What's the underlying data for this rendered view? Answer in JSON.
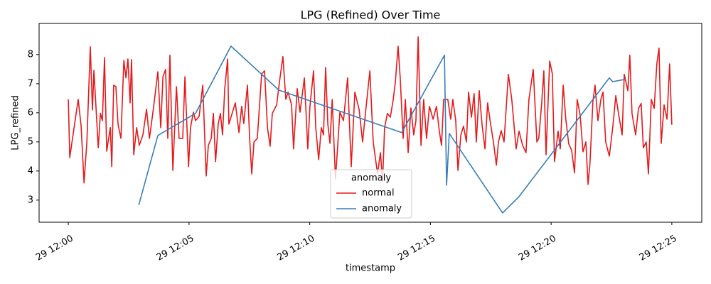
{
  "chart_data": {
    "type": "line",
    "title": "LPG (Refined) Over Time",
    "xlabel": "timestamp",
    "ylabel": "LPG_refined",
    "legend_title": "anomaly",
    "legend": "lower center",
    "grid": false,
    "xlim": [
      -1.21,
      26.24
    ],
    "ylim": [
      2.24,
      9.07
    ],
    "xticks": [
      {
        "value": 0,
        "label": "29 12:00"
      },
      {
        "value": 5,
        "label": "29 12:05"
      },
      {
        "value": 10,
        "label": "29 12:10"
      },
      {
        "value": 15,
        "label": "29 12:15"
      },
      {
        "value": 20,
        "label": "29 12:20"
      },
      {
        "value": 25,
        "label": "29 12:25"
      }
    ],
    "yticks": [
      3,
      4,
      5,
      6,
      7,
      8
    ],
    "series": [
      {
        "name": "normal",
        "color": "#e41a1c",
        "x": [
          0,
          0.06,
          0.24,
          0.41,
          0.53,
          0.65,
          0.77,
          0.91,
          1.0,
          1.06,
          1.24,
          1.33,
          1.41,
          1.5,
          1.59,
          1.74,
          1.8,
          1.88,
          1.97,
          2.06,
          2.18,
          2.3,
          2.39,
          2.47,
          2.56,
          2.62,
          2.71,
          2.83,
          2.94,
          3.09,
          3.24,
          3.36,
          3.53,
          3.71,
          3.83,
          3.92,
          4.03,
          4.12,
          4.21,
          4.33,
          4.48,
          4.59,
          4.74,
          4.83,
          4.98,
          5.06,
          5.18,
          5.27,
          5.42,
          5.57,
          5.71,
          5.8,
          5.92,
          6.01,
          6.1,
          6.21,
          6.3,
          6.39,
          6.48,
          6.6,
          6.65,
          6.92,
          7.07,
          7.18,
          7.27,
          7.42,
          7.51,
          7.6,
          7.69,
          7.83,
          8.01,
          8.13,
          8.25,
          8.36,
          8.45,
          8.63,
          8.77,
          8.89,
          9.01,
          9.1,
          9.25,
          9.33,
          9.48,
          9.6,
          9.78,
          9.92,
          10.01,
          10.16,
          10.25,
          10.37,
          10.48,
          10.57,
          10.66,
          10.75,
          10.84,
          10.93,
          11.07,
          11.25,
          11.4,
          11.57,
          11.72,
          11.87,
          12.05,
          12.19,
          12.31,
          12.49,
          12.63,
          12.81,
          12.93,
          13.02,
          13.1,
          13.22,
          13.34,
          13.46,
          13.55,
          13.66,
          13.75,
          13.87,
          13.96,
          14.08,
          14.19,
          14.31,
          14.4,
          14.49,
          14.61,
          14.72,
          14.84,
          14.96,
          15.11,
          15.25,
          15.37,
          15.46,
          15.55,
          15.72,
          15.84,
          15.93,
          16.05,
          16.14,
          16.26,
          16.37,
          16.49,
          16.58,
          16.7,
          16.81,
          16.9,
          17.02,
          17.14,
          17.26,
          17.37,
          17.49,
          17.61,
          17.73,
          17.82,
          17.93,
          18.05,
          18.23,
          18.37,
          18.55,
          18.67,
          18.82,
          18.96,
          19.08,
          19.26,
          19.41,
          19.49,
          19.61,
          19.7,
          19.79,
          19.94,
          20.05,
          20.14,
          20.29,
          20.38,
          20.5,
          20.61,
          20.73,
          20.85,
          20.97,
          21.08,
          21.2,
          21.32,
          21.44,
          21.53,
          21.61,
          21.73,
          21.82,
          21.94,
          22.06,
          22.15,
          22.26,
          22.41,
          22.56,
          22.68,
          22.79,
          22.94,
          23.03,
          23.18,
          23.26,
          23.35,
          23.5,
          23.62,
          23.73,
          23.82,
          23.94,
          24.03,
          24.15,
          24.27,
          24.38,
          24.47,
          24.56,
          24.68,
          24.8,
          24.91,
          25.0
        ],
        "values": [
          6.46,
          4.46,
          5.49,
          6.46,
          5.54,
          3.59,
          5.0,
          8.27,
          6.1,
          7.46,
          4.8,
          5.98,
          5.73,
          7.9,
          4.68,
          5.49,
          4.15,
          6.95,
          6.9,
          5.61,
          5.12,
          7.8,
          7.2,
          7.85,
          6.34,
          7.83,
          4.56,
          5.49,
          4.88,
          5.24,
          6.12,
          5.12,
          6.17,
          7.41,
          5.49,
          7.24,
          7.49,
          5.12,
          7.98,
          4.02,
          6.9,
          5.12,
          5.12,
          7.24,
          4.15,
          5.49,
          6.02,
          5.73,
          5.88,
          6.95,
          3.83,
          4.88,
          5.12,
          5.98,
          4.32,
          5.61,
          5.98,
          5.24,
          6.83,
          7.85,
          5.61,
          6.34,
          5.32,
          6.22,
          5.63,
          6.95,
          5.12,
          3.9,
          5.0,
          5.12,
          7.34,
          7.44,
          5.49,
          4.85,
          5.98,
          6.27,
          7.2,
          7.93,
          6.46,
          6.71,
          6.27,
          4.76,
          6.83,
          6.02,
          7.2,
          4.76,
          6.22,
          7.44,
          5.49,
          4.39,
          5.49,
          5.24,
          7.56,
          5.61,
          4.95,
          6.46,
          3.71,
          6.02,
          5.73,
          7.2,
          4.15,
          6.71,
          6.1,
          5.0,
          5.98,
          7.44,
          5.0,
          3.9,
          4.63,
          3.63,
          5.49,
          5.98,
          5.85,
          6.46,
          7.07,
          8.29,
          7.2,
          5.12,
          6.46,
          4.63,
          6.17,
          5.24,
          5.73,
          8.61,
          4.88,
          6.46,
          5.12,
          6.22,
          5.78,
          6.22,
          5.37,
          4.88,
          6.46,
          6.46,
          5.78,
          6.46,
          5.73,
          4.02,
          5.24,
          5.54,
          5.0,
          6.71,
          5.85,
          6.66,
          5.0,
          6.76,
          5.59,
          4.76,
          6.34,
          5.63,
          5.0,
          4.2,
          5.0,
          5.39,
          5.0,
          7.32,
          6.46,
          4.76,
          5.37,
          4.88,
          4.63,
          6.46,
          7.49,
          5.0,
          5.12,
          6.34,
          7.44,
          4.56,
          7.78,
          7.34,
          4.32,
          5.37,
          4.76,
          6.95,
          5.78,
          4.93,
          4.71,
          3.93,
          6.46,
          5.93,
          4.66,
          5.0,
          3.54,
          4.27,
          6.39,
          6.95,
          5.73,
          6.46,
          6.71,
          5.0,
          4.51,
          5.56,
          6.59,
          5.98,
          5.24,
          7.32,
          6.76,
          7.98,
          5.98,
          5.24,
          6.15,
          6.32,
          4.8,
          5.0,
          3.9,
          6.46,
          6.15,
          7.68,
          8.22,
          4.95,
          6.27,
          5.78,
          7.68,
          5.59
        ]
      },
      {
        "name": "anomaly",
        "color": "#377eb8",
        "x": [
          2.92,
          3.71,
          5.27,
          6.74,
          8.72,
          13.81,
          15.58,
          15.67,
          15.78,
          17.99,
          18.67,
          22.41,
          22.55,
          23.08
        ],
        "values": [
          2.83,
          5.22,
          5.98,
          8.29,
          6.78,
          5.32,
          7.98,
          3.51,
          5.29,
          2.56,
          3.12,
          7.2,
          7.07,
          7.15
        ]
      }
    ]
  }
}
